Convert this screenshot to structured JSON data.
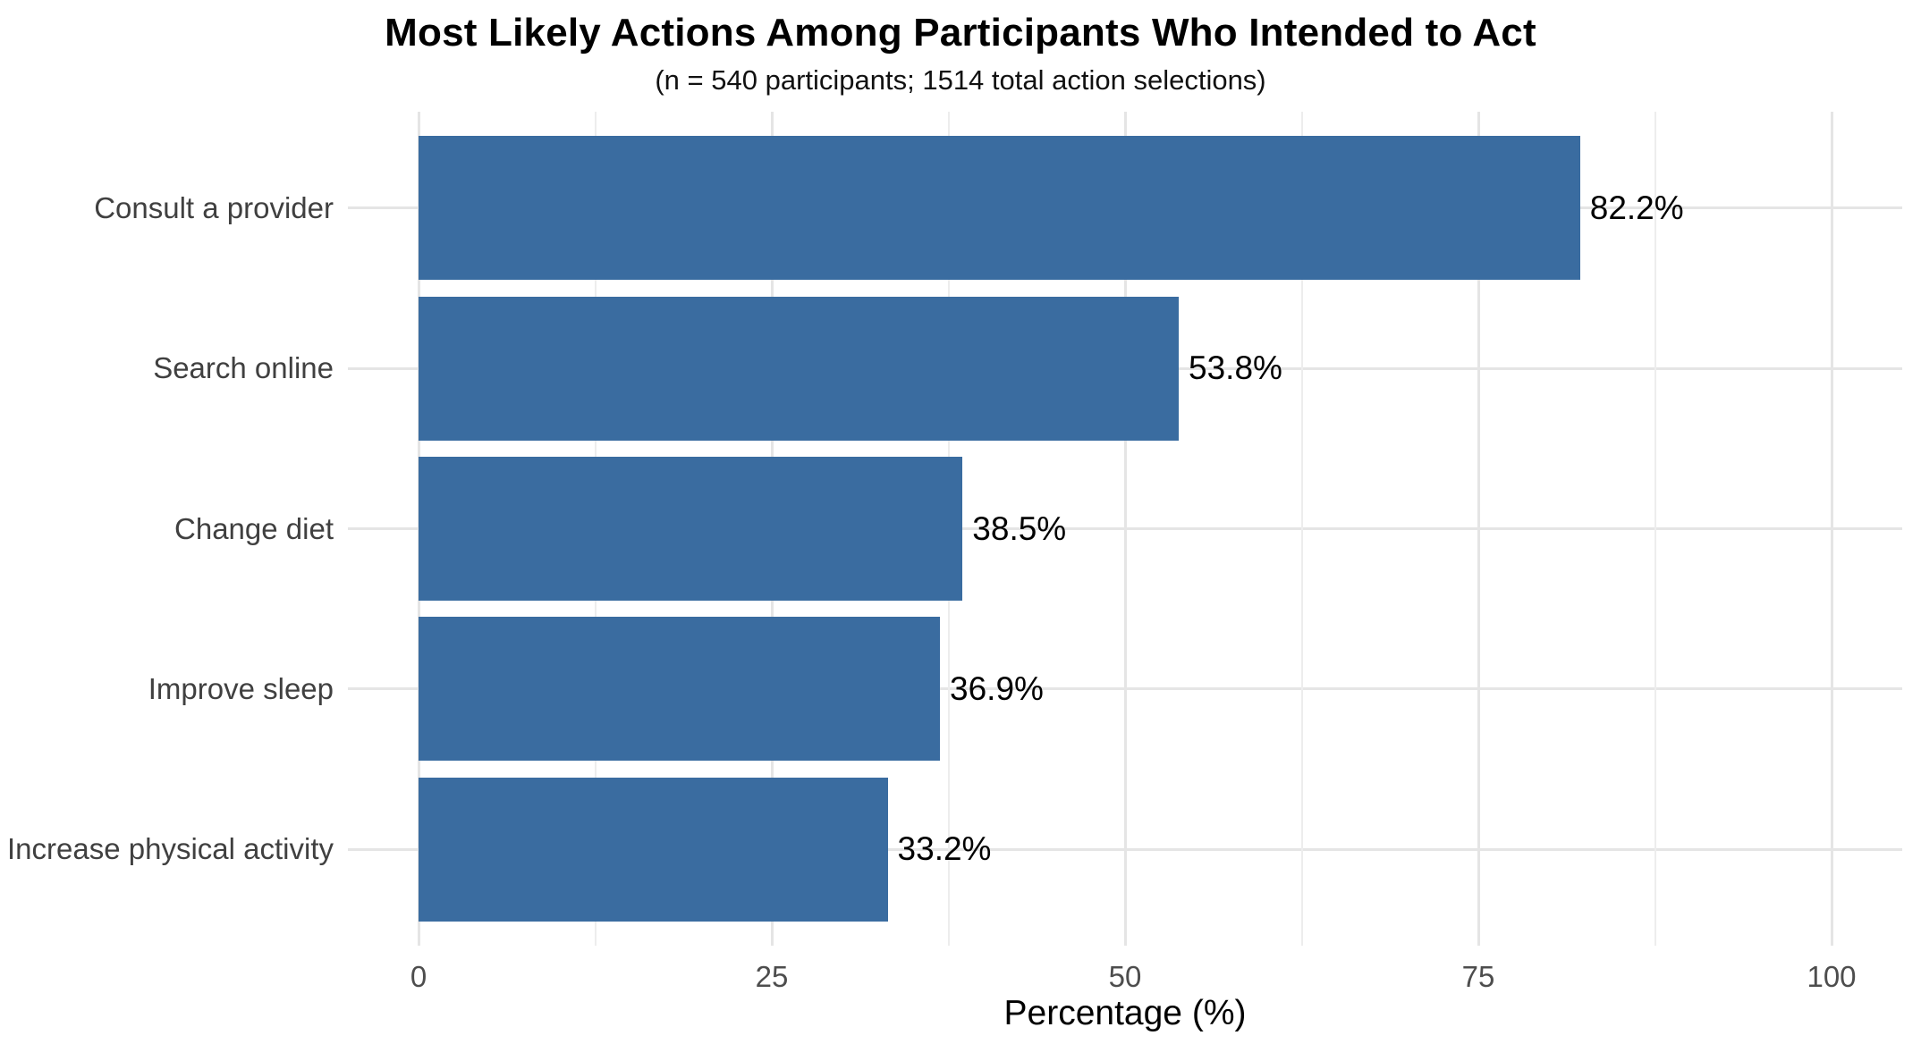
{
  "chart_data": {
    "type": "bar",
    "orientation": "horizontal",
    "title": "Most Likely Actions Among Participants Who Intended to Act",
    "subtitle": "(n = 540 participants; 1514 total action selections)",
    "xlabel": "Percentage (%)",
    "ylabel": "",
    "categories": [
      "Consult a provider",
      "Search online",
      "Change diet",
      "Improve sleep",
      "Increase physical activity"
    ],
    "values": [
      82.2,
      53.8,
      38.5,
      36.9,
      33.2
    ],
    "value_labels": [
      "82.2%",
      "53.8%",
      "38.5%",
      "36.9%",
      "33.2%"
    ],
    "x_major_ticks": [
      0,
      25,
      50,
      75,
      100
    ],
    "x_minor_ticks": [
      12.5,
      37.5,
      62.5,
      87.5
    ],
    "x_tick_labels": [
      "0",
      "25",
      "50",
      "75",
      "100"
    ],
    "xlim": [
      0,
      100
    ],
    "grid": "major-and-minor",
    "legend": "none",
    "bar_width_fraction": 0.9,
    "colors": {
      "bar_fill": "#3A6CA0",
      "grid_major": "#E5E5E5",
      "grid_minor": "#EDEDED",
      "axis_text": "#4D4D4D",
      "category_text": "#404040",
      "label_text": "#000000",
      "background": "#FFFFFF"
    }
  }
}
